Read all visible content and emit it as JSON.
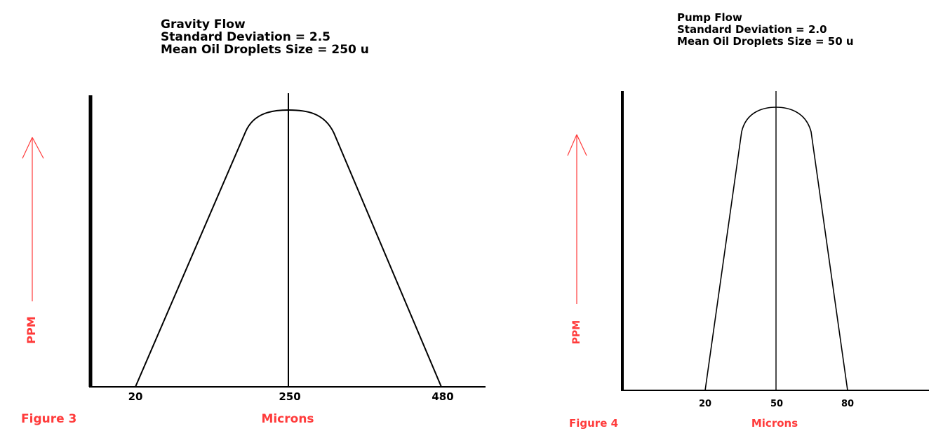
{
  "colors": {
    "accent": "#ff3b3b",
    "ink": "#000000",
    "background": "#ffffff"
  },
  "chart_data": [
    {
      "type": "line",
      "figure_label": "Figure 3",
      "title_lines": [
        "Gravity Flow",
        "Standard Deviation = 2.5",
        "Mean Oil Droplets Size = 250 u"
      ],
      "xlabel": "Microns",
      "ylabel": "PPM",
      "x_ticks": [
        "20",
        "250",
        "480"
      ],
      "x": [
        20,
        250,
        480
      ],
      "mean": 250,
      "shape": "flat-topped peak rising from 20 to the rounded top at 250 and falling to 480"
    },
    {
      "type": "line",
      "figure_label": "Figure 4",
      "title_lines": [
        "Pump Flow",
        "Standard Deviation = 2.0",
        "Mean Oil Droplets Size = 50 u"
      ],
      "xlabel": "Microns",
      "ylabel": "PPM",
      "x_ticks": [
        "20",
        "50",
        "80"
      ],
      "x": [
        20,
        50,
        80
      ],
      "mean": 50,
      "shape": "narrow flat-topped peak rising from 20 to the rounded top at 50 and falling to 80"
    }
  ]
}
